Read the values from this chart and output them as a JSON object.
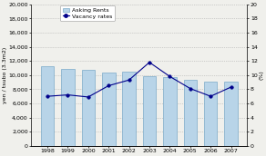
{
  "years": [
    1998,
    1999,
    2000,
    2001,
    2002,
    2003,
    2004,
    2005,
    2006,
    2007
  ],
  "asking_rents": [
    11200,
    10900,
    10800,
    10400,
    10500,
    9800,
    9700,
    9300,
    9100,
    9100
  ],
  "vacancy_rates": [
    7.0,
    7.2,
    6.9,
    8.5,
    9.3,
    11.8,
    9.8,
    8.1,
    7.0,
    8.3
  ],
  "bar_color": "#b8d4e8",
  "bar_edge_color": "#7aaac8",
  "line_color": "#00008b",
  "marker_color": "#00008b",
  "marker_fill": "#00008b",
  "ylabel_left": "yen / tsubo (3.3m2)",
  "ylabel_right": "(%)",
  "ylim_left": [
    0,
    20000
  ],
  "ylim_right": [
    0,
    20
  ],
  "yticks_left": [
    0,
    2000,
    4000,
    6000,
    8000,
    10000,
    12000,
    14000,
    16000,
    18000,
    20000
  ],
  "yticks_right": [
    0,
    2,
    4,
    6,
    8,
    10,
    12,
    14,
    16,
    18,
    20
  ],
  "legend_labels": [
    "Asking Rents",
    "Vacancy rates"
  ],
  "bg_color": "#f0f0ec",
  "grid_color": "#aaaaaa",
  "tick_fontsize": 4.5,
  "label_fontsize": 4.5,
  "legend_fontsize": 4.5
}
